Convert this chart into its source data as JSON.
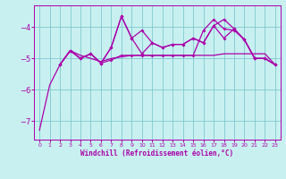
{
  "xlabel": "Windchill (Refroidissement éolien,°C)",
  "background_color": "#c8f0f0",
  "grid_color": "#80c8d0",
  "line_color": "#aa00aa",
  "xlim": [
    -0.5,
    23.5
  ],
  "ylim": [
    -7.6,
    -3.3
  ],
  "yticks": [
    -7,
    -6,
    -5,
    -4
  ],
  "xticks": [
    0,
    1,
    2,
    3,
    4,
    5,
    6,
    7,
    8,
    9,
    10,
    11,
    12,
    13,
    14,
    15,
    16,
    17,
    18,
    19,
    20,
    21,
    22,
    23
  ],
  "line1": {
    "x": [
      0,
      1,
      2,
      3,
      4,
      5,
      6,
      7,
      8,
      9,
      10,
      11,
      12,
      13,
      14,
      15,
      16,
      17,
      18,
      19,
      20,
      21,
      22,
      23
    ],
    "y": [
      -7.3,
      -5.85,
      -5.2,
      -4.75,
      -4.9,
      -5.0,
      -5.1,
      -5.0,
      -4.95,
      -4.9,
      -4.9,
      -4.9,
      -4.9,
      -4.9,
      -4.9,
      -4.9,
      -4.9,
      -4.9,
      -4.85,
      -4.85,
      -4.85,
      -4.85,
      -4.85,
      -5.2
    ],
    "marker": false
  },
  "line2": {
    "x": [
      2,
      3,
      4,
      5,
      6,
      7,
      8,
      9,
      10,
      11,
      12,
      13,
      14,
      15,
      16,
      17,
      18,
      19,
      20,
      21,
      22,
      23
    ],
    "y": [
      -5.2,
      -4.75,
      -5.0,
      -4.85,
      -5.15,
      -4.65,
      -3.65,
      -4.35,
      -4.85,
      -4.5,
      -4.65,
      -4.55,
      -4.55,
      -4.35,
      -4.5,
      -3.95,
      -4.35,
      -4.05,
      -4.4,
      -5.0,
      -5.0,
      -5.2
    ],
    "marker": true
  },
  "line3": {
    "x": [
      2,
      3,
      4,
      5,
      6,
      7,
      8,
      9,
      10,
      11,
      12,
      13,
      14,
      15,
      16,
      17,
      18,
      19,
      20,
      21,
      22,
      23
    ],
    "y": [
      -5.2,
      -4.75,
      -5.0,
      -4.85,
      -5.15,
      -4.65,
      -3.65,
      -4.35,
      -4.1,
      -4.5,
      -4.65,
      -4.55,
      -4.55,
      -4.35,
      -4.5,
      -3.95,
      -3.75,
      -4.05,
      -4.4,
      -5.0,
      -5.0,
      -5.2
    ],
    "marker": true
  },
  "line4": {
    "x": [
      2,
      3,
      4,
      5,
      6,
      7,
      8,
      9,
      10,
      11,
      12,
      13,
      14,
      15,
      16,
      17,
      18,
      19,
      20,
      21,
      22,
      23
    ],
    "y": [
      -5.2,
      -4.75,
      -5.0,
      -4.85,
      -5.15,
      -5.05,
      -4.9,
      -4.9,
      -4.9,
      -4.9,
      -4.9,
      -4.9,
      -4.9,
      -4.9,
      -4.1,
      -3.75,
      -4.05,
      -4.1,
      -4.4,
      -5.0,
      -5.0,
      -5.2
    ],
    "marker": true
  }
}
